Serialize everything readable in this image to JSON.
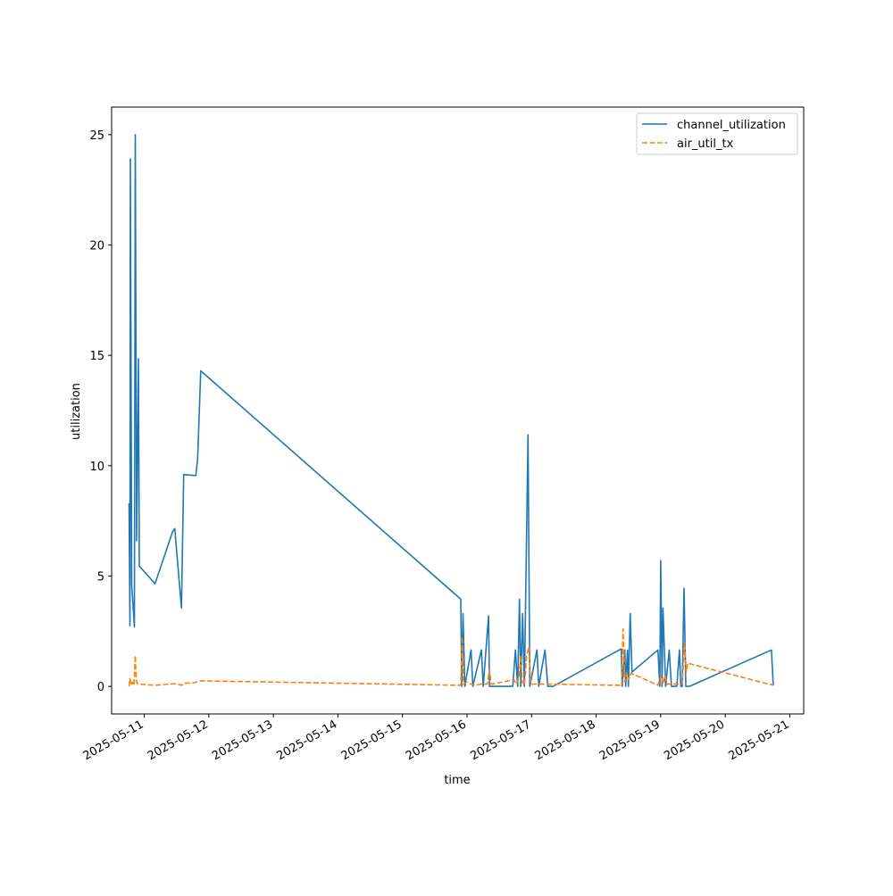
{
  "chart_data": {
    "type": "line",
    "title": "",
    "xlabel": "time",
    "ylabel": "utilization",
    "xlim": [
      "2025-05-10T11:52",
      "2025-05-21T05:10"
    ],
    "ylim": [
      -1.25,
      26.25
    ],
    "x_ticks": [
      "2025-05-11",
      "2025-05-12",
      "2025-05-13",
      "2025-05-14",
      "2025-05-15",
      "2025-05-16",
      "2025-05-17",
      "2025-05-18",
      "2025-05-19",
      "2025-05-20",
      "2025-05-21"
    ],
    "y_ticks": [
      0,
      5,
      10,
      15,
      20,
      25
    ],
    "grid": false,
    "legend_position": "upper right",
    "series": [
      {
        "name": "channel_utilization",
        "color": "#1f77b4",
        "style": "solid",
        "points": [
          [
            "2025-05-10T18:20",
            8.3
          ],
          [
            "2025-05-10T18:40",
            2.75
          ],
          [
            "2025-05-10T18:50",
            23.9
          ],
          [
            "2025-05-10T19:20",
            4.6
          ],
          [
            "2025-05-10T20:20",
            2.7
          ],
          [
            "2025-05-10T20:40",
            25.0
          ],
          [
            "2025-05-10T21:10",
            6.6
          ],
          [
            "2025-05-10T21:50",
            14.85
          ],
          [
            "2025-05-10T22:10",
            5.45
          ],
          [
            "2025-05-11T04:00",
            4.65
          ],
          [
            "2025-05-11T10:30",
            7.0
          ],
          [
            "2025-05-11T11:20",
            7.15
          ],
          [
            "2025-05-11T13:50",
            3.55
          ],
          [
            "2025-05-11T14:40",
            9.6
          ],
          [
            "2025-05-11T19:10",
            9.55
          ],
          [
            "2025-05-11T19:50",
            10.3
          ],
          [
            "2025-05-11T21:00",
            14.3
          ],
          [
            "2025-05-15T21:40",
            3.95
          ],
          [
            "2025-05-15T22:00",
            0.0
          ],
          [
            "2025-05-15T22:30",
            3.3
          ],
          [
            "2025-05-15T23:10",
            0.0
          ],
          [
            "2025-05-16T01:30",
            1.65
          ],
          [
            "2025-05-16T02:10",
            0.0
          ],
          [
            "2025-05-16T05:20",
            1.65
          ],
          [
            "2025-05-16T06:00",
            0.0
          ],
          [
            "2025-05-16T08:00",
            3.2
          ],
          [
            "2025-05-16T08:20",
            0.0
          ],
          [
            "2025-05-16T17:00",
            0.0
          ],
          [
            "2025-05-16T18:00",
            1.65
          ],
          [
            "2025-05-16T18:50",
            0.0
          ],
          [
            "2025-05-16T19:30",
            3.95
          ],
          [
            "2025-05-16T20:00",
            0.0
          ],
          [
            "2025-05-16T20:40",
            3.3
          ],
          [
            "2025-05-16T21:20",
            0.0
          ],
          [
            "2025-05-16T22:40",
            11.4
          ],
          [
            "2025-05-16T23:20",
            0.0
          ],
          [
            "2025-05-17T02:00",
            1.65
          ],
          [
            "2025-05-17T02:40",
            0.0
          ],
          [
            "2025-05-17T05:00",
            1.65
          ],
          [
            "2025-05-17T06:00",
            0.0
          ],
          [
            "2025-05-17T08:00",
            0.0
          ],
          [
            "2025-05-18T09:20",
            1.7
          ],
          [
            "2025-05-18T09:40",
            0.0
          ],
          [
            "2025-05-18T10:40",
            1.65
          ],
          [
            "2025-05-18T11:00",
            0.0
          ],
          [
            "2025-05-18T11:40",
            1.65
          ],
          [
            "2025-05-18T12:00",
            0.0
          ],
          [
            "2025-05-18T12:40",
            3.3
          ],
          [
            "2025-05-18T13:20",
            0.65
          ],
          [
            "2025-05-18T23:00",
            1.65
          ],
          [
            "2025-05-18T23:40",
            0.0
          ],
          [
            "2025-05-19T00:00",
            5.7
          ],
          [
            "2025-05-19T00:30",
            0.0
          ],
          [
            "2025-05-19T00:50",
            3.55
          ],
          [
            "2025-05-19T01:50",
            0.0
          ],
          [
            "2025-05-19T03:10",
            1.65
          ],
          [
            "2025-05-19T04:00",
            0.0
          ],
          [
            "2025-05-19T06:00",
            0.0
          ],
          [
            "2025-05-19T07:00",
            1.65
          ],
          [
            "2025-05-19T07:30",
            0.0
          ],
          [
            "2025-05-19T08:00",
            0.0
          ],
          [
            "2025-05-19T08:40",
            4.45
          ],
          [
            "2025-05-19T09:20",
            0.0
          ],
          [
            "2025-05-19T10:40",
            0.0
          ],
          [
            "2025-05-20T17:10",
            1.65
          ],
          [
            "2025-05-20T17:50",
            0.05
          ]
        ]
      },
      {
        "name": "air_util_tx",
        "color": "#ff7f0e",
        "style": "dashed",
        "points": [
          [
            "2025-05-10T18:20",
            0.0
          ],
          [
            "2025-05-10T18:40",
            0.35
          ],
          [
            "2025-05-10T19:10",
            0.05
          ],
          [
            "2025-05-10T19:40",
            0.2
          ],
          [
            "2025-05-10T20:10",
            0.05
          ],
          [
            "2025-05-10T20:40",
            1.4
          ],
          [
            "2025-05-10T21:00",
            0.3
          ],
          [
            "2025-05-10T21:30",
            0.1
          ],
          [
            "2025-05-10T22:10",
            0.1
          ],
          [
            "2025-05-11T04:00",
            0.05
          ],
          [
            "2025-05-11T09:00",
            0.1
          ],
          [
            "2025-05-11T12:00",
            0.12
          ],
          [
            "2025-05-11T14:00",
            0.05
          ],
          [
            "2025-05-11T15:00",
            0.15
          ],
          [
            "2025-05-11T18:00",
            0.15
          ],
          [
            "2025-05-11T21:00",
            0.25
          ],
          [
            "2025-05-15T21:40",
            0.05
          ],
          [
            "2025-05-15T22:10",
            2.25
          ],
          [
            "2025-05-15T22:40",
            0.1
          ],
          [
            "2025-05-16T00:00",
            0.2
          ],
          [
            "2025-05-16T01:30",
            0.1
          ],
          [
            "2025-05-16T03:00",
            0.05
          ],
          [
            "2025-05-16T05:00",
            0.1
          ],
          [
            "2025-05-16T07:30",
            0.1
          ],
          [
            "2025-05-16T08:20",
            0.75
          ],
          [
            "2025-05-16T09:00",
            0.1
          ],
          [
            "2025-05-16T17:30",
            0.3
          ],
          [
            "2025-05-16T18:20",
            0.1
          ],
          [
            "2025-05-16T19:20",
            0.4
          ],
          [
            "2025-05-16T20:00",
            1.4
          ],
          [
            "2025-05-16T20:30",
            0.2
          ],
          [
            "2025-05-16T21:20",
            0.05
          ],
          [
            "2025-05-16T22:10",
            1.4
          ],
          [
            "2025-05-16T23:00",
            1.8
          ],
          [
            "2025-05-16T23:40",
            0.1
          ],
          [
            "2025-05-17T06:00",
            0.1
          ],
          [
            "2025-05-18T08:30",
            0.05
          ],
          [
            "2025-05-18T09:30",
            0.05
          ],
          [
            "2025-05-18T10:00",
            2.6
          ],
          [
            "2025-05-18T10:40",
            0.2
          ],
          [
            "2025-05-18T11:20",
            0.6
          ],
          [
            "2025-05-18T12:00",
            0.3
          ],
          [
            "2025-05-18T13:00",
            0.6
          ],
          [
            "2025-05-18T23:00",
            0.05
          ],
          [
            "2025-05-19T00:10",
            0.5
          ],
          [
            "2025-05-19T00:50",
            0.1
          ],
          [
            "2025-05-19T01:40",
            0.5
          ],
          [
            "2025-05-19T02:20",
            0.1
          ],
          [
            "2025-05-19T06:30",
            0.1
          ],
          [
            "2025-05-19T08:00",
            0.1
          ],
          [
            "2025-05-19T08:50",
            2.0
          ],
          [
            "2025-05-19T09:30",
            0.65
          ],
          [
            "2025-05-19T10:00",
            1.05
          ],
          [
            "2025-05-20T17:50",
            0.05
          ]
        ]
      }
    ]
  }
}
